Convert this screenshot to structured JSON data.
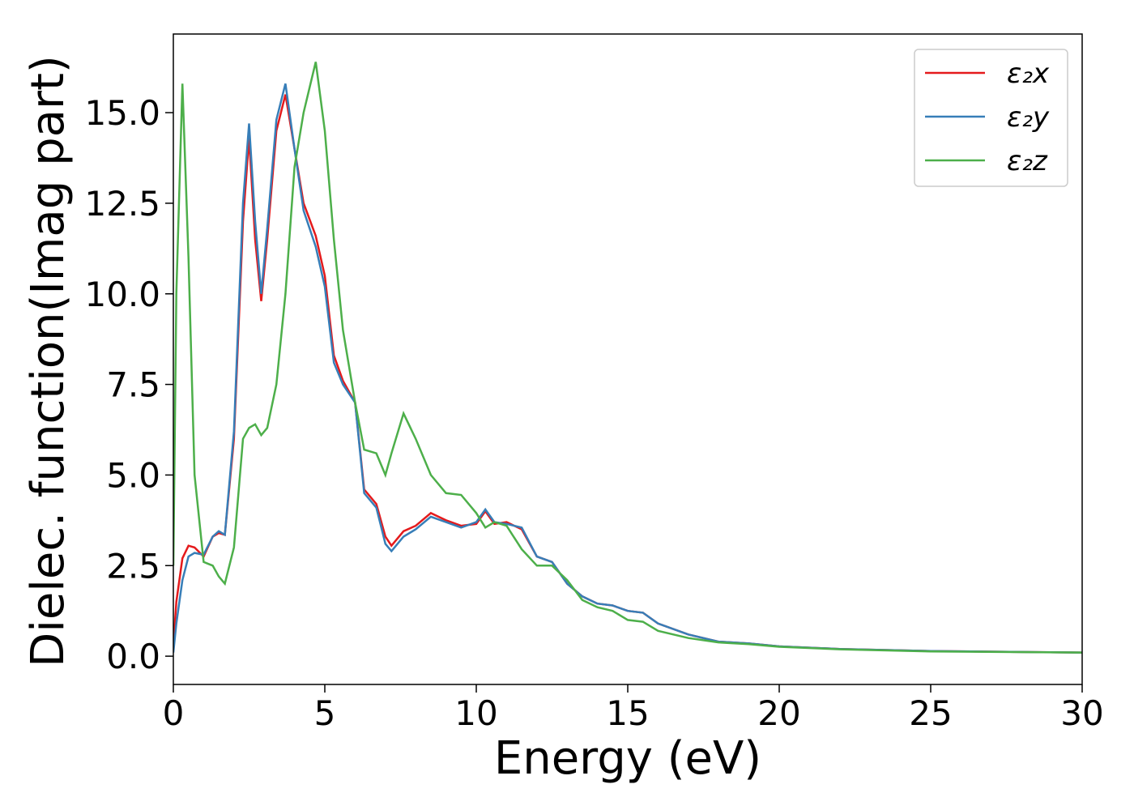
{
  "chart_data": {
    "type": "line",
    "xlabel": "Energy (eV)",
    "ylabel": "Dielec. function(Imag part)",
    "x": [
      0,
      0.1,
      0.3,
      0.5,
      0.7,
      1.0,
      1.3,
      1.5,
      1.7,
      2.0,
      2.3,
      2.5,
      2.7,
      2.9,
      3.1,
      3.4,
      3.7,
      4.0,
      4.3,
      4.7,
      5.0,
      5.3,
      5.6,
      6.0,
      6.3,
      6.7,
      7.0,
      7.2,
      7.6,
      8.0,
      8.5,
      9.0,
      9.5,
      10.0,
      10.3,
      10.6,
      11.0,
      11.5,
      12.0,
      12.5,
      13.0,
      13.5,
      14,
      14.5,
      15,
      15.5,
      16,
      17,
      18,
      19,
      20,
      22,
      25,
      30
    ],
    "series": [
      {
        "name": "ε₂x",
        "color": "#e41a1c",
        "values": [
          0.3,
          1.5,
          2.7,
          3.05,
          3.0,
          2.75,
          3.3,
          3.4,
          3.35,
          6.0,
          12.0,
          14.3,
          11.5,
          9.8,
          11.5,
          14.5,
          15.5,
          14.0,
          12.5,
          11.6,
          10.5,
          8.3,
          7.6,
          7.0,
          4.6,
          4.2,
          3.3,
          3.05,
          3.45,
          3.6,
          3.95,
          3.75,
          3.6,
          3.65,
          4.0,
          3.65,
          3.7,
          3.5,
          2.75,
          2.6,
          2.0,
          1.65,
          1.45,
          1.4,
          1.25,
          1.2,
          0.9,
          0.6,
          0.4,
          0.35,
          0.27,
          0.2,
          0.14,
          0.1
        ]
      },
      {
        "name": "ε₂y",
        "color": "#377eb8",
        "values": [
          0.1,
          0.9,
          2.1,
          2.75,
          2.85,
          2.8,
          3.3,
          3.45,
          3.35,
          6.2,
          12.5,
          14.7,
          12.0,
          10.0,
          11.8,
          14.8,
          15.8,
          14.0,
          12.3,
          11.3,
          10.2,
          8.1,
          7.5,
          7.0,
          4.5,
          4.1,
          3.1,
          2.9,
          3.3,
          3.5,
          3.85,
          3.7,
          3.55,
          3.7,
          4.05,
          3.7,
          3.65,
          3.55,
          2.75,
          2.6,
          2.0,
          1.65,
          1.45,
          1.4,
          1.25,
          1.2,
          0.9,
          0.6,
          0.4,
          0.35,
          0.27,
          0.2,
          0.14,
          0.1
        ]
      },
      {
        "name": "ε₂z",
        "color": "#4daf4a",
        "values": [
          2.5,
          10,
          15.8,
          11,
          5,
          2.6,
          2.5,
          2.2,
          2.0,
          3.0,
          6.0,
          6.3,
          6.4,
          6.1,
          6.3,
          7.5,
          10,
          13.5,
          15,
          16.4,
          14.5,
          11.5,
          9.0,
          7.0,
          5.7,
          5.6,
          5.0,
          5.6,
          6.7,
          6.0,
          5.0,
          4.5,
          4.45,
          3.95,
          3.55,
          3.7,
          3.6,
          2.95,
          2.5,
          2.5,
          2.1,
          1.55,
          1.35,
          1.25,
          1.0,
          0.95,
          0.7,
          0.5,
          0.38,
          0.33,
          0.26,
          0.19,
          0.13,
          0.1
        ]
      }
    ],
    "xlim": [
      0,
      30
    ],
    "xticks": [
      0,
      5,
      10,
      15,
      20,
      25,
      30
    ],
    "ylim": [
      -0.78,
      17.17
    ],
    "yticks": [
      {
        "value": 0,
        "label": "0.0"
      },
      2.5,
      {
        "value": 5,
        "label": "5.0"
      },
      7.5,
      {
        "value": 10,
        "label": "10.0"
      },
      12.5,
      {
        "value": 15,
        "label": "15.0"
      }
    ],
    "grid": false,
    "legend": "upper right"
  }
}
